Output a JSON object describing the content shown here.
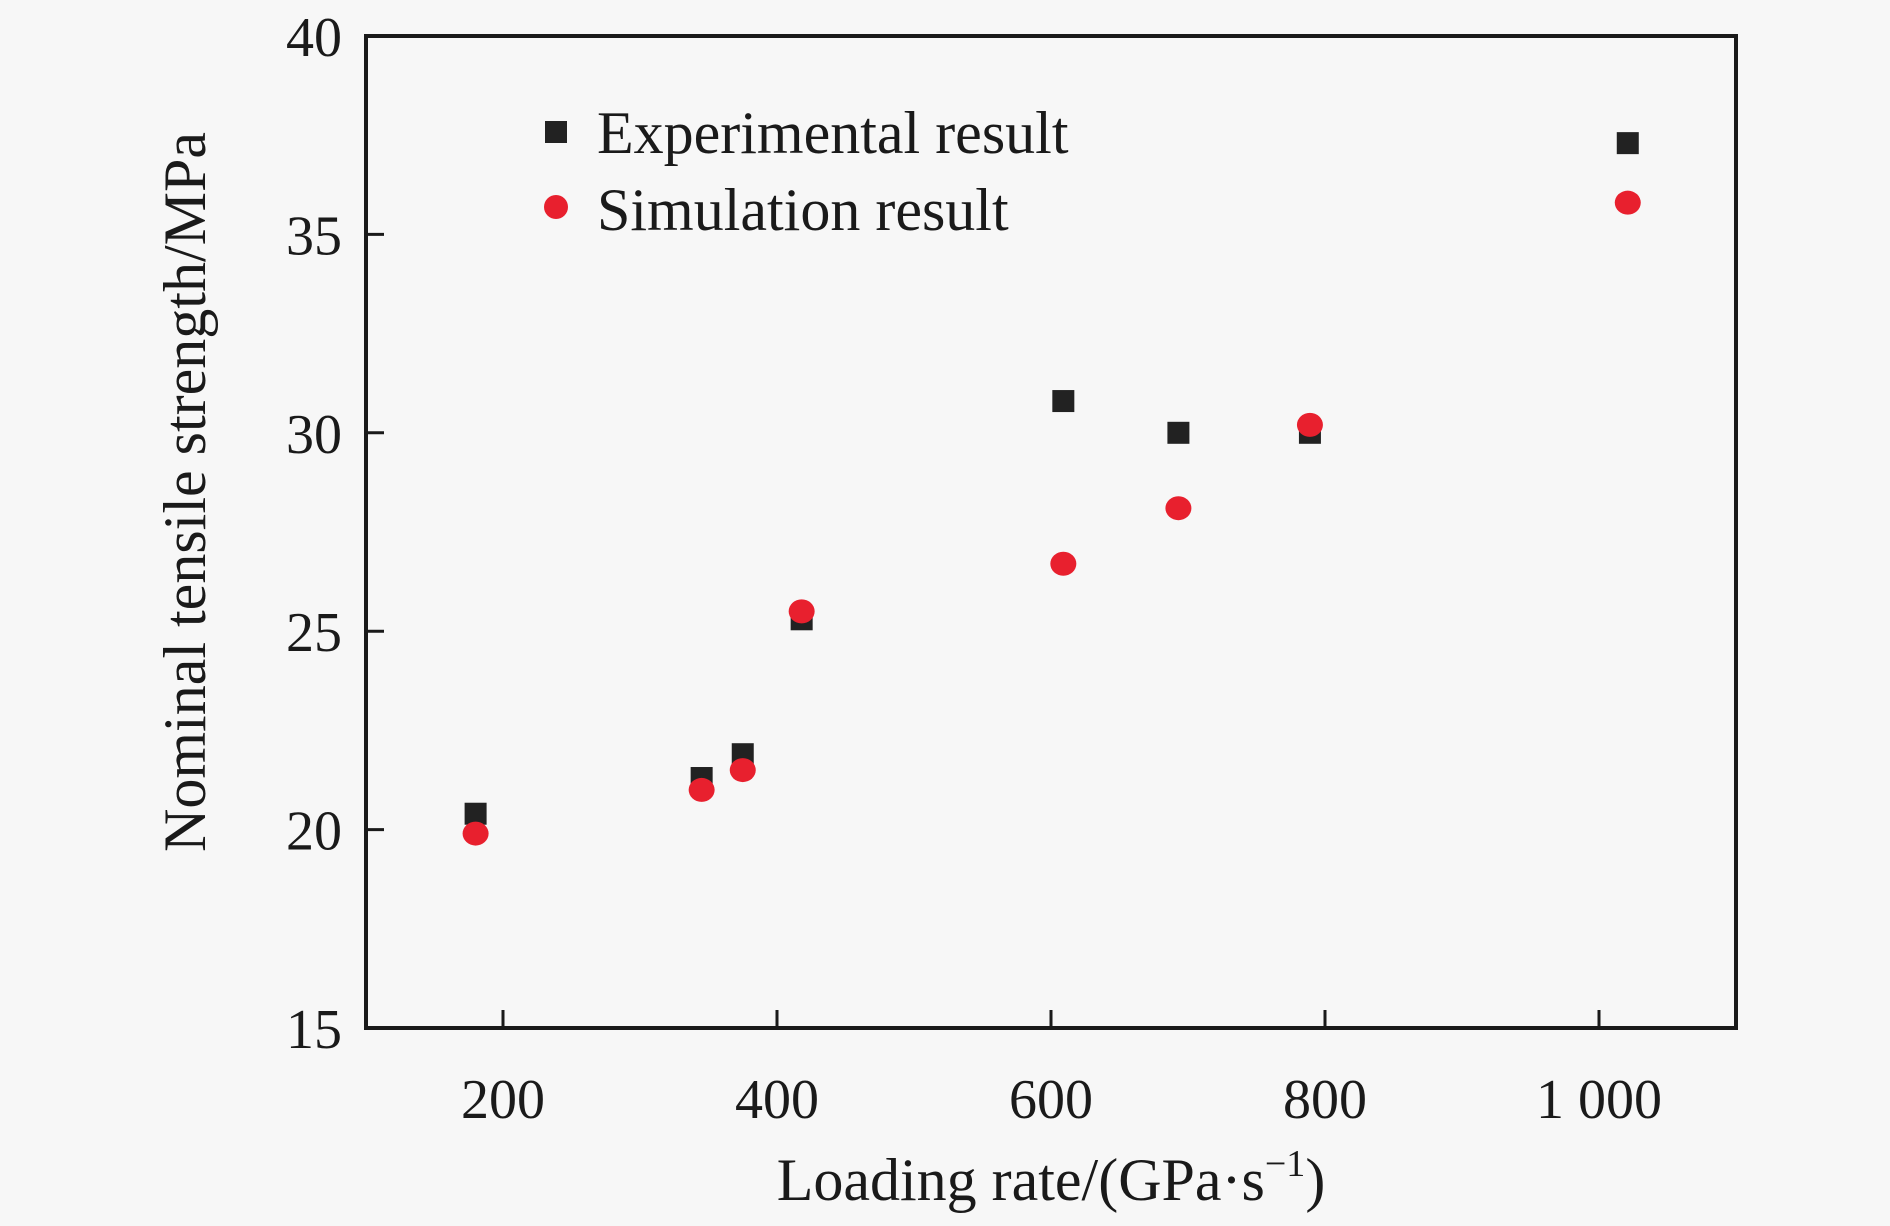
{
  "chart_data": {
    "type": "scatter",
    "title": "",
    "xlabel": "Loading rate/(GPa·s",
    "xlabel_superscript": "−1",
    "xlabel_suffix": ")",
    "ylabel": "Nominal tensile strength/MPa",
    "xlim": [
      100,
      1100
    ],
    "ylim": [
      15,
      40
    ],
    "xticks": [
      200,
      400,
      600,
      800,
      1000
    ],
    "xtick_labels": [
      "200",
      "400",
      "600",
      "800",
      "1 000"
    ],
    "yticks": [
      15,
      20,
      25,
      30,
      35,
      40
    ],
    "ytick_labels": [
      "15",
      "20",
      "25",
      "30",
      "35",
      "40"
    ],
    "grid": false,
    "legend_position": "top-left",
    "series": [
      {
        "name": "Experimental result",
        "marker": "square",
        "color": "#222222",
        "x": [
          180,
          345,
          375,
          418,
          609,
          693,
          789,
          1021
        ],
        "y": [
          20.4,
          21.3,
          21.9,
          25.3,
          30.8,
          30.0,
          30.0,
          37.3
        ]
      },
      {
        "name": "Simulation result",
        "marker": "circle",
        "color": "#e8202e",
        "x": [
          180,
          345,
          375,
          418,
          609,
          693,
          789,
          1021
        ],
        "y": [
          19.9,
          21.0,
          21.5,
          25.5,
          26.7,
          28.1,
          30.2,
          35.8
        ]
      }
    ]
  }
}
